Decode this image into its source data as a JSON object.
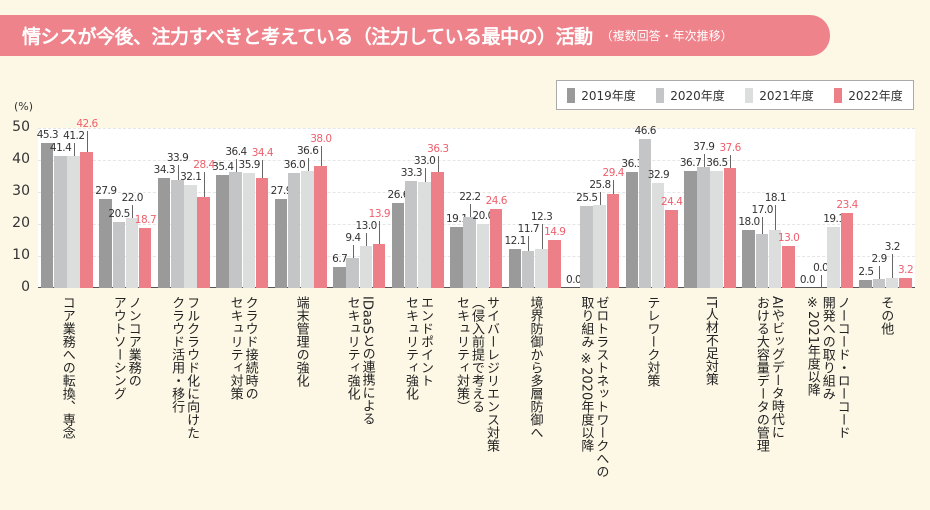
{
  "header": {
    "title": "情シスが今後、注力すべきと考えている（注力している最中の）活動",
    "subtitle": "（複数回答・年次推移）"
  },
  "chart_data": {
    "type": "bar",
    "title": "情シスが今後、注力すべきと考えている（注力している最中の）活動（複数回答・年次推移）",
    "ylabel": "(%)",
    "ylim": [
      0,
      50
    ],
    "yticks": [
      "0",
      "10",
      "20",
      "30",
      "40",
      "50"
    ],
    "grid": true,
    "legend_position": "top-right",
    "categories": [
      "コア業務への転換、専念",
      "ノンコア業務の\nアウトソーシング",
      "フルクラウド化に向けた\nクラウド活用・移行",
      "クラウド接続時の\nセキュリティ対策",
      "端末管理の強化",
      "IDaaSとの連携による\nセキュリティ強化",
      "エンドポイント\nセキュリティ強化",
      "サイバーレジリエンス対策\n（侵入前提で考える\nセキュリティ対策）",
      "境界防御から多層防御へ",
      "ゼロトラストネットワークへの\n取り組み ※2020年度以降",
      "テレワーク対策",
      "IT人材不足対策",
      "AIやビッグデータ時代に\nおける大容量データの管理",
      "ノーコード・ローコード\n開発への取り組み\n※2021年度以降",
      "その他"
    ],
    "series": [
      {
        "name": "2019年度",
        "color": "#9a9a9a",
        "values": [
          45.3,
          27.9,
          34.3,
          35.4,
          27.9,
          6.7,
          26.6,
          19.1,
          12.1,
          0.0,
          36.3,
          36.7,
          18.0,
          0.0,
          2.5
        ]
      },
      {
        "name": "2020年度",
        "color": "#c4c5c6",
        "values": [
          41.4,
          20.5,
          33.9,
          36.4,
          36.0,
          9.4,
          33.3,
          22.2,
          11.7,
          25.5,
          46.6,
          37.9,
          17.0,
          0.0,
          2.9
        ]
      },
      {
        "name": "2021年度",
        "color": "#dcdddd",
        "values": [
          41.2,
          22.0,
          32.1,
          35.9,
          36.6,
          13.0,
          33.0,
          20.0,
          12.3,
          25.8,
          32.9,
          36.5,
          18.1,
          19.1,
          3.2
        ]
      },
      {
        "name": "2022年度",
        "color": "#ec7f88",
        "values": [
          42.6,
          18.7,
          28.4,
          34.4,
          38.0,
          13.9,
          36.3,
          24.6,
          14.9,
          29.4,
          24.4,
          37.6,
          13.0,
          23.4,
          3.2
        ]
      }
    ],
    "highlight_label_color": "#ee5f6c"
  }
}
